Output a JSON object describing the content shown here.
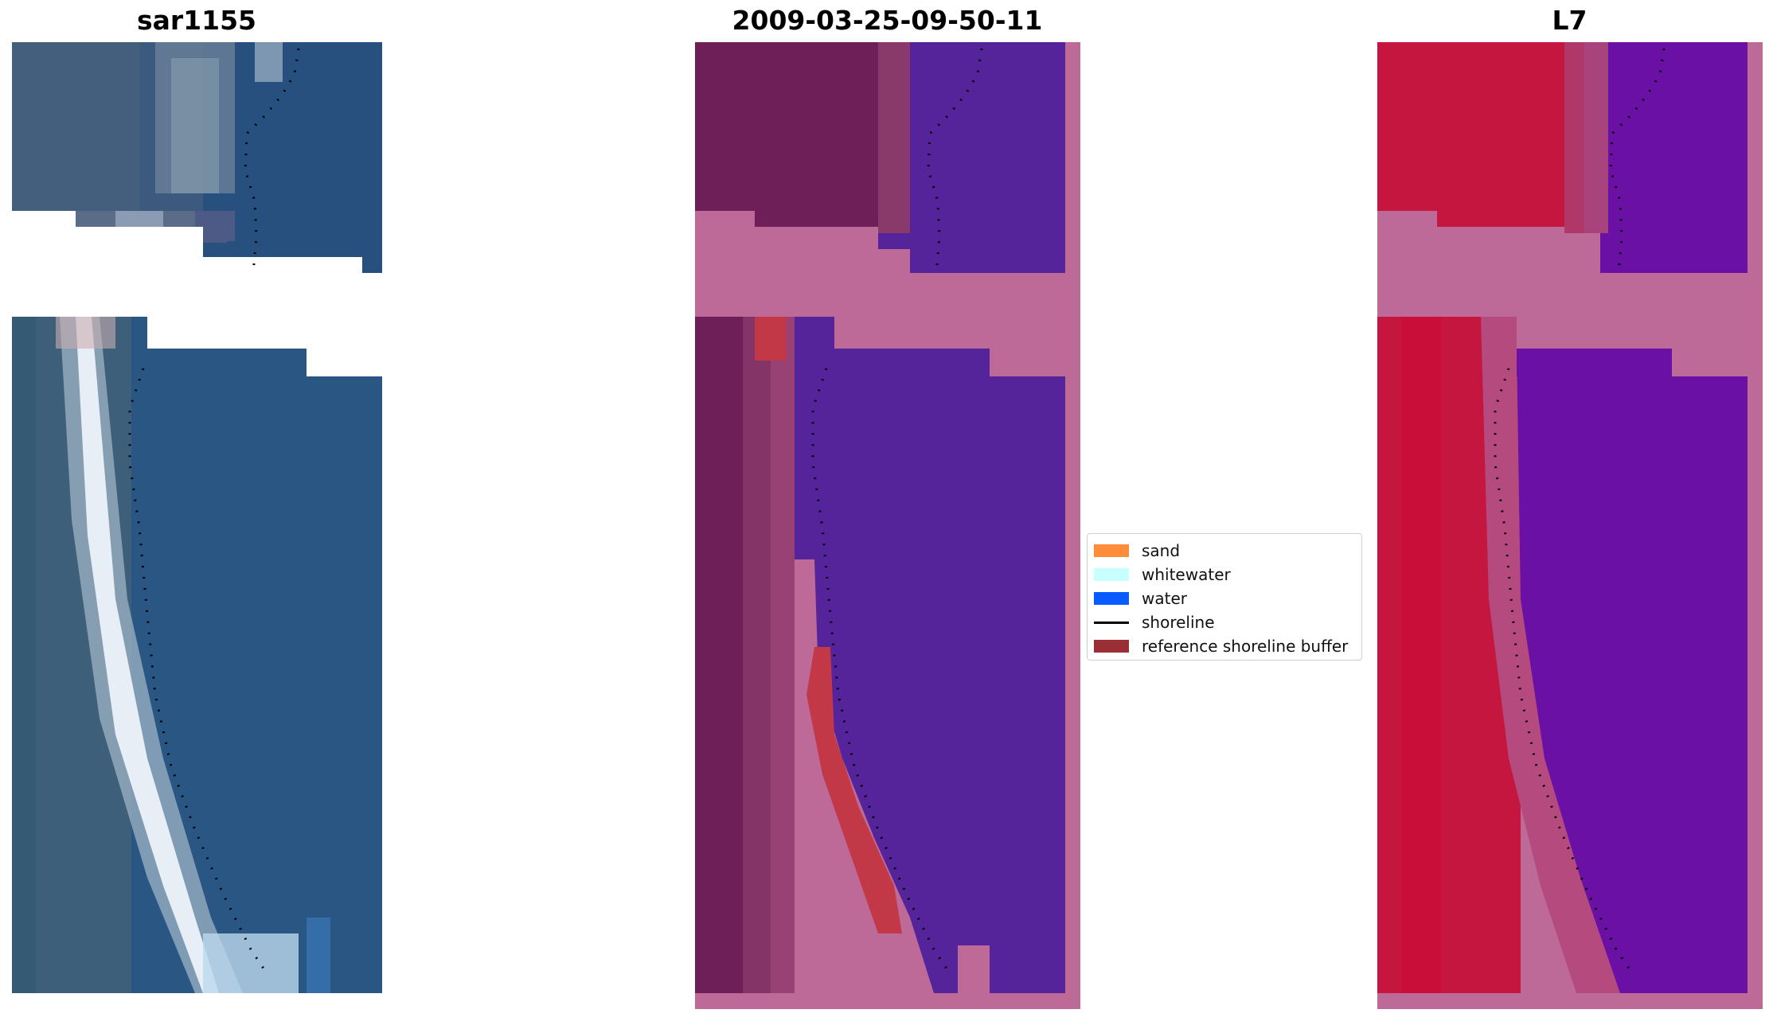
{
  "panels": {
    "left_title": "sar1155",
    "middle_title": "2009-03-25-09-50-11",
    "right_title": "L7"
  },
  "legend": {
    "items": [
      {
        "label": "sand",
        "color": "#ff8c3a",
        "kind": "patch"
      },
      {
        "label": "whitewater",
        "color": "#c8ffff",
        "kind": "patch"
      },
      {
        "label": "water",
        "color": "#0a5bff",
        "kind": "patch"
      },
      {
        "label": "shoreline",
        "color": "#000000",
        "kind": "line"
      },
      {
        "label": "reference shoreline buffer",
        "color": "#9a2e35",
        "kind": "patch"
      }
    ]
  },
  "colors": {
    "rgb_water": "#27507e",
    "rgb_land": "#3f5c7d",
    "rgb_whitewater": "#e6ecf2",
    "class_land": "#6e1f58",
    "class_water": "#55239a",
    "class_buffer": "#bd6a98",
    "class_red": "#c23847",
    "ndwi_land": "#c4163f",
    "ndwi_water": "#6a10a4",
    "ndwi_buffer": "#bd6a98"
  }
}
